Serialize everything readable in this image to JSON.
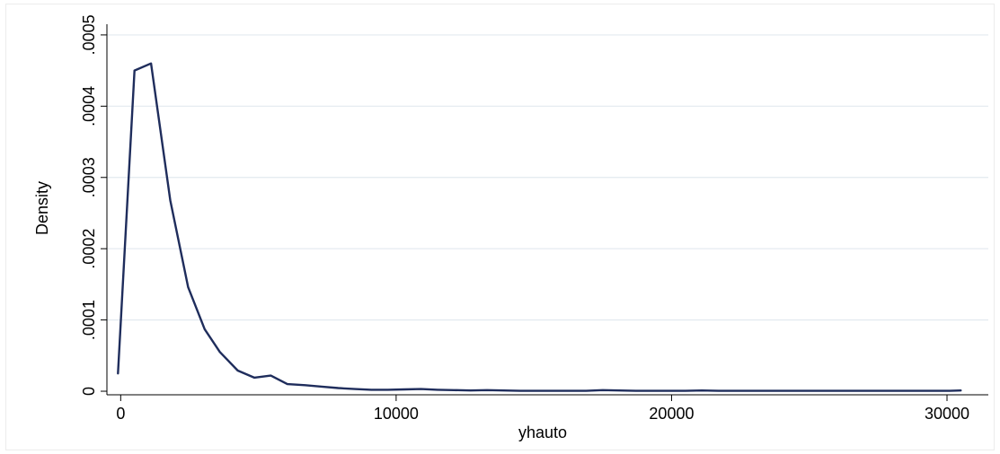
{
  "chart_data": {
    "type": "line",
    "title": "",
    "xlabel": "yhauto",
    "ylabel": "Density",
    "xlim": [
      -500,
      31500
    ],
    "ylim": [
      -5e-06,
      0.000515
    ],
    "xticks": [
      0,
      10000,
      20000,
      30000
    ],
    "xtick_labels": [
      "0",
      "10000",
      "20000",
      "30000"
    ],
    "yticks": [
      0,
      0.0001,
      0.0002,
      0.0003,
      0.0004,
      0.0005
    ],
    "ytick_labels": [
      "0",
      ".0001",
      ".0002",
      ".0003",
      ".0004",
      ".0005"
    ],
    "grid": true,
    "line_color": "#1f2d5c",
    "series": [
      {
        "x": [
          -100,
          500,
          1100,
          1800,
          2450,
          3050,
          3600,
          4250,
          4850,
          5450,
          6050,
          6700,
          7300,
          7900,
          8500,
          9100,
          9700,
          10300,
          10900,
          11500,
          12100,
          12700,
          13300,
          13900,
          14500,
          15100,
          15700,
          16300,
          16900,
          17500,
          18100,
          18700,
          19300,
          19900,
          20500,
          21100,
          21700,
          22300,
          22900,
          23500,
          24100,
          24700,
          25300,
          25900,
          26500,
          27100,
          27700,
          28300,
          28900,
          29500,
          30100,
          30500
        ],
        "values": [
          2.5e-05,
          0.00045,
          0.00046,
          0.000268,
          0.000146,
          8.7e-05,
          5.5e-05,
          2.9e-05,
          1.9e-05,
          2.2e-05,
          1e-05,
          8.5e-06,
          6.5e-06,
          4.5e-06,
          3e-06,
          2e-06,
          2e-06,
          2.5e-06,
          3e-06,
          2e-06,
          1.5e-06,
          1e-06,
          1.5e-06,
          1e-06,
          5e-07,
          5e-07,
          5e-07,
          5e-07,
          5e-07,
          1.5e-06,
          1e-06,
          5e-07,
          5e-07,
          5e-07,
          5e-07,
          1e-06,
          5e-07,
          5e-07,
          5e-07,
          5e-07,
          5e-07,
          5e-07,
          5e-07,
          5e-07,
          5e-07,
          5e-07,
          5e-07,
          5e-07,
          5e-07,
          5e-07,
          5e-07,
          1e-06
        ]
      }
    ]
  }
}
